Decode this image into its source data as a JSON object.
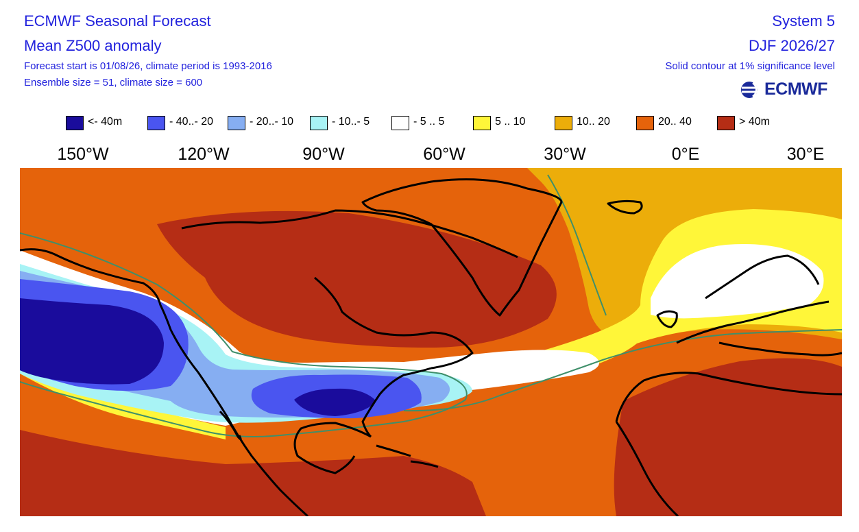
{
  "header": {
    "title": "ECMWF Seasonal Forecast",
    "subtitle": "Mean Z500 anomaly",
    "forecast_info": "Forecast start is 01/08/26, climate period is 1993-2016",
    "ensemble_info": "Ensemble size = 51, climate size = 600",
    "system": "System 5",
    "season": "DJF 2026/27",
    "significance_note": "Solid contour at 1% significance level",
    "logo_text": "ECMWF"
  },
  "legend": [
    {
      "label": "<- 40m",
      "color": "#1a0c9c"
    },
    {
      "label": "- 40..- 20",
      "color": "#4a55f0"
    },
    {
      "label": "- 20..- 10",
      "color": "#86aef2"
    },
    {
      "label": "- 10..- 5",
      "color": "#a8f3f5"
    },
    {
      "label": "- 5 .. 5",
      "color": "#ffffff"
    },
    {
      "label": "5 .. 10",
      "color": "#fff639"
    },
    {
      "label": "10.. 20",
      "color": "#ecad0a"
    },
    {
      "label": "20.. 40",
      "color": "#e5630b"
    },
    {
      "label": "> 40m",
      "color": "#b52d15"
    }
  ],
  "longitude_labels": [
    "150°W",
    "120°W",
    "90°W",
    "60°W",
    "30°W",
    "0°E",
    "30°E"
  ],
  "map": {
    "significance_contour_color": "#3f8f6a",
    "coastline_color": "#000000"
  }
}
